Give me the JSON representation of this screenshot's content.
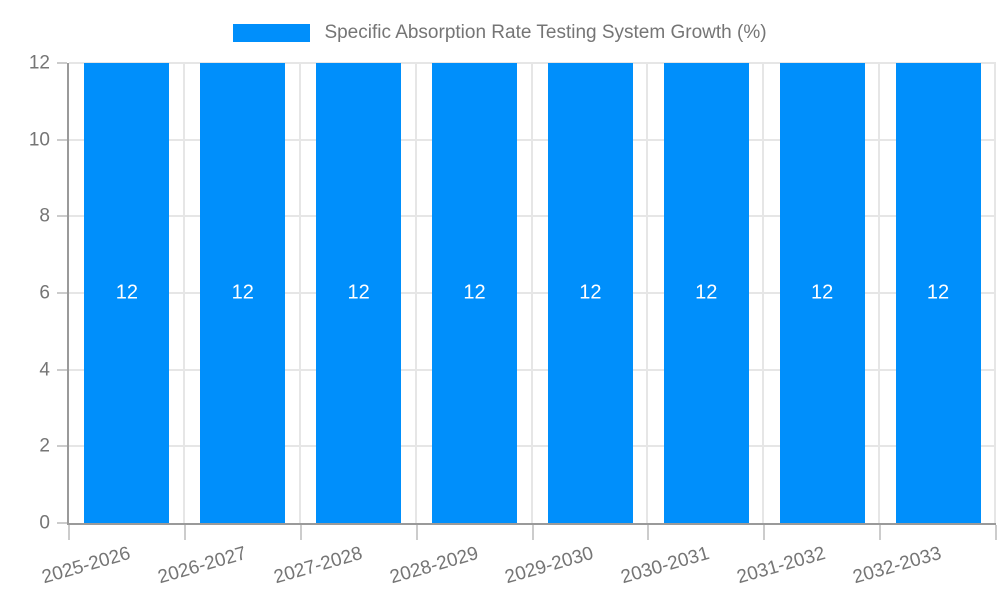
{
  "chart_data": {
    "type": "bar",
    "title": "Specific Absorption Rate Testing System Growth (%)",
    "categories": [
      "2025-2026",
      "2026-2027",
      "2027-2028",
      "2028-2029",
      "2029-2030",
      "2030-2031",
      "2031-2032",
      "2032-2033"
    ],
    "series": [
      {
        "name": "Specific Absorption Rate Testing System Growth (%)",
        "values": [
          12,
          12,
          12,
          12,
          12,
          12,
          12,
          12
        ]
      }
    ],
    "data_labels": [
      12,
      12,
      12,
      12,
      12,
      12,
      12,
      12
    ],
    "xlabel": "",
    "ylabel": "",
    "ylim": [
      0,
      12
    ],
    "yticks": [
      0,
      2,
      4,
      6,
      8,
      10,
      12
    ],
    "grid": true,
    "legend_position": "top",
    "x_label_rotation_deg": -16,
    "colors": {
      "bar": "#008FFB",
      "data_label": "#FFFFFF",
      "axis_text": "#757575",
      "grid_line": "#E6E6E6",
      "axis_line": "#9A9A9A",
      "tick_mark": "#CCCCCC",
      "background": "#FFFFFF"
    }
  },
  "legend": {
    "label": "Specific Absorption Rate Testing System Growth (%)"
  }
}
